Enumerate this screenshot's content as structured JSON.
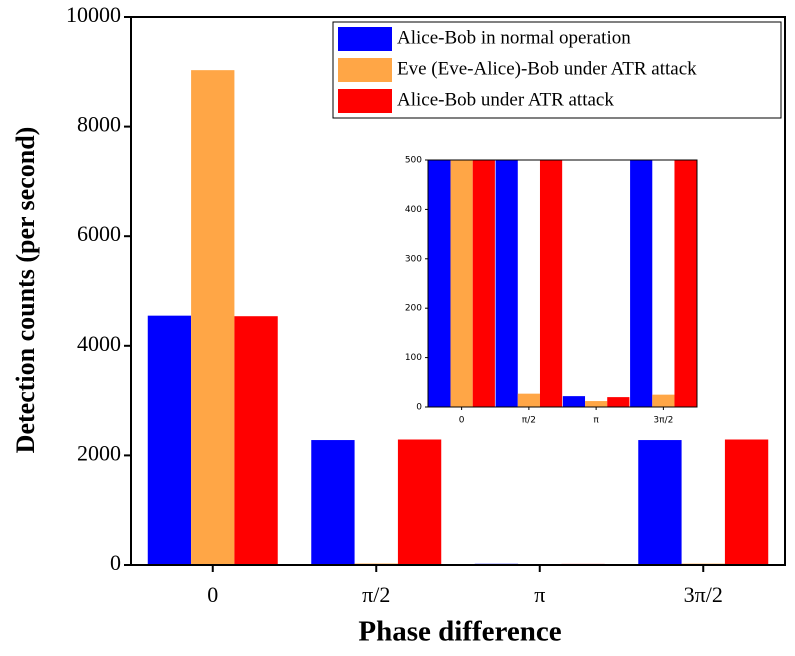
{
  "chart_data": {
    "type": "bar",
    "xlabel": "Phase difference",
    "ylabel": "Detection counts (per second)",
    "categories": [
      "0",
      "π/2",
      "π",
      "3π/2"
    ],
    "series": [
      {
        "name": "Alice-Bob in normal operation",
        "color": "#0000ff",
        "values": [
          4550,
          2280,
          22,
          2280
        ]
      },
      {
        "name": "Eve (Eve-Alice)-Bob under ATR attack",
        "color": "#ffa646",
        "values": [
          9030,
          27,
          12,
          25
        ]
      },
      {
        "name": "Alice-Bob under ATR attack",
        "color": "#ff0000",
        "values": [
          4540,
          2290,
          20,
          2290
        ]
      }
    ],
    "ylim": [
      0,
      10000
    ],
    "yticks": [
      0,
      2000,
      4000,
      6000,
      8000,
      10000
    ],
    "inset_ylim": [
      0,
      500
    ],
    "inset_yticks": [
      0,
      100,
      200,
      300,
      400,
      500
    ],
    "legend": "top-right"
  }
}
